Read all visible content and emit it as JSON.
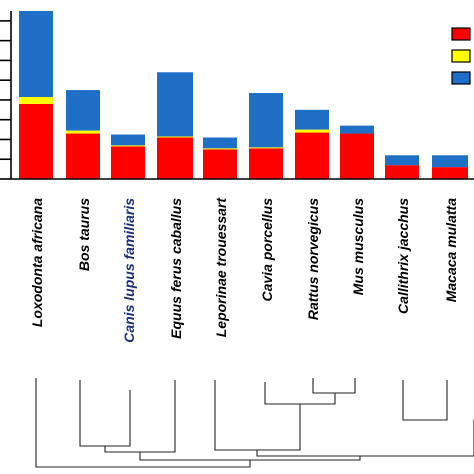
{
  "chart_data": {
    "type": "bar",
    "stacked": true,
    "categories": [
      "Loxodonta africana",
      "Bos taurus",
      "Canis lupus familiaris",
      "Equus ferus caballus",
      "Leporinae trouessart",
      "Cavia porcellus",
      "Rattus norvegicus",
      "Mus musculus",
      "Callithrix jacchus",
      "Macaca mulatta"
    ],
    "category_colors": [
      "#000000",
      "#000000",
      "#1a2e7a",
      "#000000",
      "#000000",
      "#000000",
      "#000000",
      "#000000",
      "#000000",
      "#000000"
    ],
    "series": [
      {
        "color": "#ff0000",
        "values": [
          38,
          23,
          16.5,
          21,
          15,
          15.5,
          23.5,
          23,
          7,
          6
        ]
      },
      {
        "color": "#ffff00",
        "values": [
          3.5,
          1.5,
          0.5,
          0.5,
          0.5,
          0.5,
          1.5,
          0,
          0,
          0
        ]
      },
      {
        "color": "#1f6fc6",
        "values": [
          43.5,
          20.5,
          5.5,
          32.5,
          5.5,
          27.5,
          10,
          4,
          5,
          6
        ]
      }
    ],
    "ylim": [
      0,
      85
    ],
    "yticks": [
      0,
      10,
      20,
      30,
      40,
      50,
      60,
      70,
      80
    ],
    "ytick_labels_visible": false,
    "grid": false,
    "legend": {
      "placement": "top-right",
      "colors": [
        "#ff0000",
        "#ffff00",
        "#1f6fc6"
      ]
    },
    "dendrogram": {
      "leaf_order": [
        "Loxodonta africana",
        "Bos taurus",
        "Canis lupus familiaris",
        "Equus ferus caballus",
        "Leporinae trouessart",
        "Cavia porcellus",
        "Rattus norvegicus",
        "Mus musculus",
        "Callithrix jacchus",
        "Macaca mulatta"
      ],
      "clusters": [
        {
          "children": [
            "Rattus norvegicus",
            "Mus musculus"
          ],
          "height": 0.2
        },
        {
          "children": [
            "Cavia porcellus",
            [
              "Rattus norvegicus",
              "Mus musculus"
            ]
          ],
          "height": 0.42
        },
        {
          "children": [
            "Callithrix jacchus",
            "Macaca mulatta"
          ],
          "height": 0.38
        },
        {
          "children": [
            "Bos taurus",
            "Canis lupus familiaris"
          ],
          "height": 0.85
        },
        {
          "children": [
            "Leporinae trouessart",
            [
              "Cavia porcellus",
              [
                "Rattus norvegicus",
                "Mus musculus"
              ]
            ]
          ],
          "height": 0.9
        },
        {
          "children": [
            [
              "Bos taurus",
              "Canis lupus familiaris"
            ],
            "Equus ferus caballus"
          ],
          "height": 0.92
        },
        {
          "children": [
            [
              "Leporinae trouessart",
              "Cavia porcellus",
              "Rattus norvegicus",
              "Mus musculus"
            ],
            [
              "Callithrix jacchus",
              "Macaca mulatta"
            ]
          ],
          "height": 0.95
        },
        {
          "children": [
            [
              "Bos taurus",
              "Canis lupus familiaris",
              "Equus ferus caballus"
            ],
            [
              "Leporinae trouessart",
              "Cavia porcellus",
              "Rattus norvegicus",
              "Mus musculus",
              "Callithrix jacchus",
              "Macaca mulatta"
            ]
          ],
          "height": 1.0
        },
        {
          "children": [
            "Loxodonta africana",
            [
              "Bos taurus",
              "Canis lupus familiaris",
              "Equus ferus caballus",
              "Leporinae trouessart",
              "Cavia porcellus",
              "Rattus norvegicus",
              "Mus musculus",
              "Callithrix jacchus",
              "Macaca mulatta"
            ]
          ],
          "height": 1.08
        }
      ]
    }
  }
}
